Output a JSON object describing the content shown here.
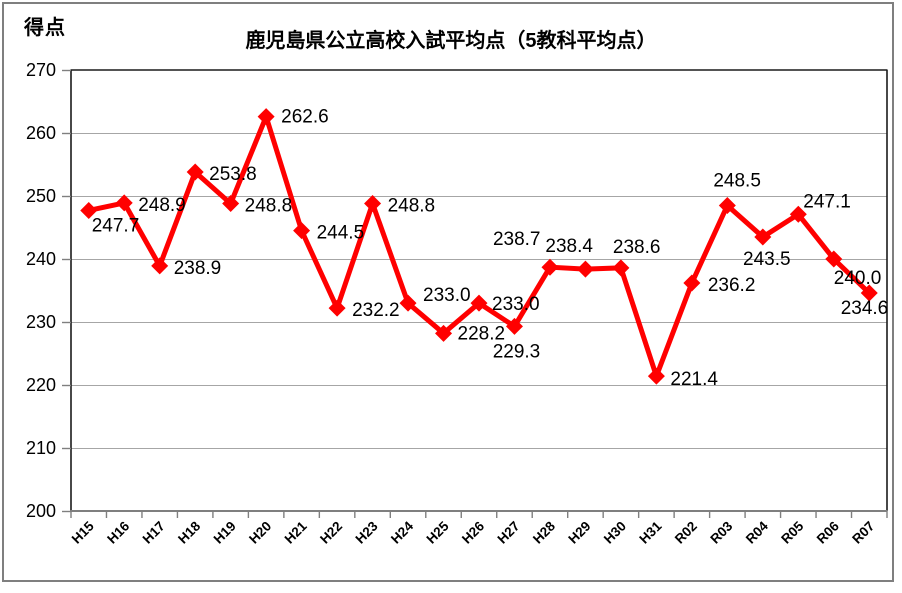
{
  "chart_data": {
    "type": "line",
    "title": "鹿児島県公立高校入試平均点（5教科平均点）",
    "ylabel": "得点",
    "xlabel": "",
    "categories": [
      "H15",
      "H16",
      "H17",
      "H18",
      "H19",
      "H20",
      "H21",
      "H22",
      "H23",
      "H24",
      "H25",
      "H26",
      "H27",
      "H28",
      "H29",
      "H30",
      "H31",
      "R02",
      "R03",
      "R04",
      "R05",
      "R06",
      "R07"
    ],
    "values": [
      247.7,
      248.9,
      238.9,
      253.8,
      248.8,
      262.6,
      244.5,
      232.2,
      248.8,
      233.0,
      228.2,
      233.0,
      229.3,
      238.7,
      238.4,
      238.6,
      221.4,
      236.2,
      248.5,
      243.5,
      247.1,
      240.0,
      234.6
    ],
    "data_labels": [
      "247.7",
      "248.9",
      "238.9",
      "253.8",
      "248.8",
      "262.6",
      "244.5",
      "232.2",
      "248.8",
      "233.0",
      "228.2",
      "233.0",
      "229.3",
      "238.7",
      "238.4",
      "238.6",
      "221.4",
      "236.2",
      "248.5",
      "243.5",
      "247.1",
      "240.0",
      "234.6"
    ],
    "ylim": [
      200,
      270
    ],
    "ytick_step": 10,
    "ytick_labels": [
      "200",
      "210",
      "220",
      "230",
      "240",
      "250",
      "260",
      "270"
    ],
    "grid": true,
    "legend": "none",
    "line_color": "#FF0000",
    "marker_shape": "diamond",
    "grid_color": "#A6A6A6",
    "axis_color": "#7F7F7F",
    "border_color": "#1A1A1A",
    "label_color": "#000000",
    "label_positions": [
      [
        3,
        21,
        "s"
      ],
      [
        14,
        8,
        "s"
      ],
      [
        14,
        8,
        "s"
      ],
      [
        14,
        8,
        "s"
      ],
      [
        14,
        8,
        "s"
      ],
      [
        15,
        6,
        "s"
      ],
      [
        15,
        8,
        "s"
      ],
      [
        15,
        8,
        "s"
      ],
      [
        15,
        8,
        "s"
      ],
      [
        15,
        -2,
        "s"
      ],
      [
        14,
        6,
        "s"
      ],
      [
        13,
        7,
        "s"
      ],
      [
        2,
        31,
        "m"
      ],
      [
        -57,
        -22,
        "s"
      ],
      [
        -40,
        -17,
        "s"
      ],
      [
        -8,
        -15,
        "s"
      ],
      [
        14,
        9,
        "s"
      ],
      [
        16,
        8,
        "s"
      ],
      [
        -14,
        -19,
        "s"
      ],
      [
        4,
        28,
        "m"
      ],
      [
        5,
        -7,
        "s"
      ],
      [
        0,
        25,
        "s"
      ],
      [
        19,
        21,
        "e"
      ]
    ]
  }
}
